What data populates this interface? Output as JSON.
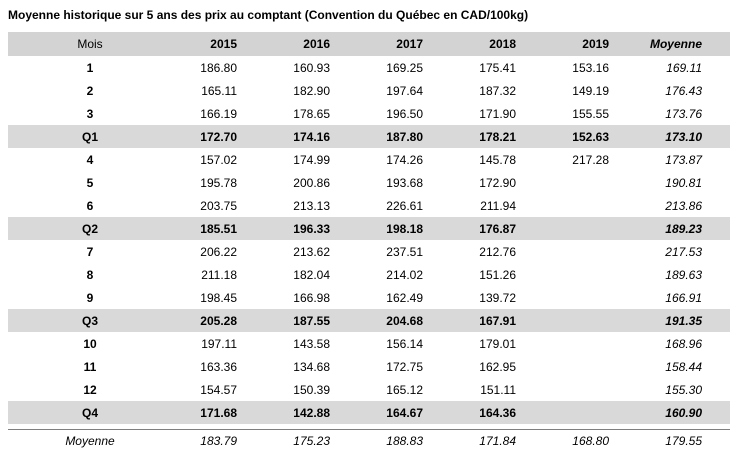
{
  "title": "Moyenne historique sur 5 ans des prix au comptant (Convention du Québec en CAD/100kg)",
  "colors": {
    "header_row_bg": "#d3d3d3",
    "quarter_row_bg": "#d9d9d9",
    "total_rule": "#7f7f7f"
  },
  "table": {
    "columns": [
      "Mois",
      "2015",
      "2016",
      "2017",
      "2018",
      "2019",
      "Moyenne"
    ],
    "rows": [
      {
        "label": "1",
        "type": "month",
        "values": [
          "186.80",
          "160.93",
          "169.25",
          "175.41",
          "153.16",
          "169.11"
        ]
      },
      {
        "label": "2",
        "type": "month",
        "values": [
          "165.11",
          "182.90",
          "197.64",
          "187.32",
          "149.19",
          "176.43"
        ]
      },
      {
        "label": "3",
        "type": "month",
        "values": [
          "166.19",
          "178.65",
          "196.50",
          "171.90",
          "155.55",
          "173.76"
        ]
      },
      {
        "label": "Q1",
        "type": "quarter",
        "values": [
          "172.70",
          "174.16",
          "187.80",
          "178.21",
          "152.63",
          "173.10"
        ]
      },
      {
        "label": "4",
        "type": "month",
        "values": [
          "157.02",
          "174.99",
          "174.26",
          "145.78",
          "217.28",
          "173.87"
        ]
      },
      {
        "label": "5",
        "type": "month",
        "values": [
          "195.78",
          "200.86",
          "193.68",
          "172.90",
          "",
          "190.81"
        ]
      },
      {
        "label": "6",
        "type": "month",
        "values": [
          "203.75",
          "213.13",
          "226.61",
          "211.94",
          "",
          "213.86"
        ]
      },
      {
        "label": "Q2",
        "type": "quarter",
        "values": [
          "185.51",
          "196.33",
          "198.18",
          "176.87",
          "",
          "189.23"
        ]
      },
      {
        "label": "7",
        "type": "month",
        "values": [
          "206.22",
          "213.62",
          "237.51",
          "212.76",
          "",
          "217.53"
        ]
      },
      {
        "label": "8",
        "type": "month",
        "values": [
          "211.18",
          "182.04",
          "214.02",
          "151.26",
          "",
          "189.63"
        ]
      },
      {
        "label": "9",
        "type": "month",
        "values": [
          "198.45",
          "166.98",
          "162.49",
          "139.72",
          "",
          "166.91"
        ]
      },
      {
        "label": "Q3",
        "type": "quarter",
        "values": [
          "205.28",
          "187.55",
          "204.68",
          "167.91",
          "",
          "191.35"
        ]
      },
      {
        "label": "10",
        "type": "month",
        "values": [
          "197.11",
          "143.58",
          "156.14",
          "179.01",
          "",
          "168.96"
        ]
      },
      {
        "label": "11",
        "type": "month",
        "values": [
          "163.36",
          "134.68",
          "172.75",
          "162.95",
          "",
          "158.44"
        ]
      },
      {
        "label": "12",
        "type": "month",
        "values": [
          "154.57",
          "150.39",
          "165.12",
          "151.11",
          "",
          "155.30"
        ]
      },
      {
        "label": "Q4",
        "type": "quarter",
        "values": [
          "171.68",
          "142.88",
          "164.67",
          "164.36",
          "",
          "160.90"
        ]
      },
      {
        "label": "Moyenne",
        "type": "total",
        "values": [
          "183.79",
          "175.23",
          "188.83",
          "171.84",
          "168.80",
          "179.55"
        ]
      }
    ]
  }
}
